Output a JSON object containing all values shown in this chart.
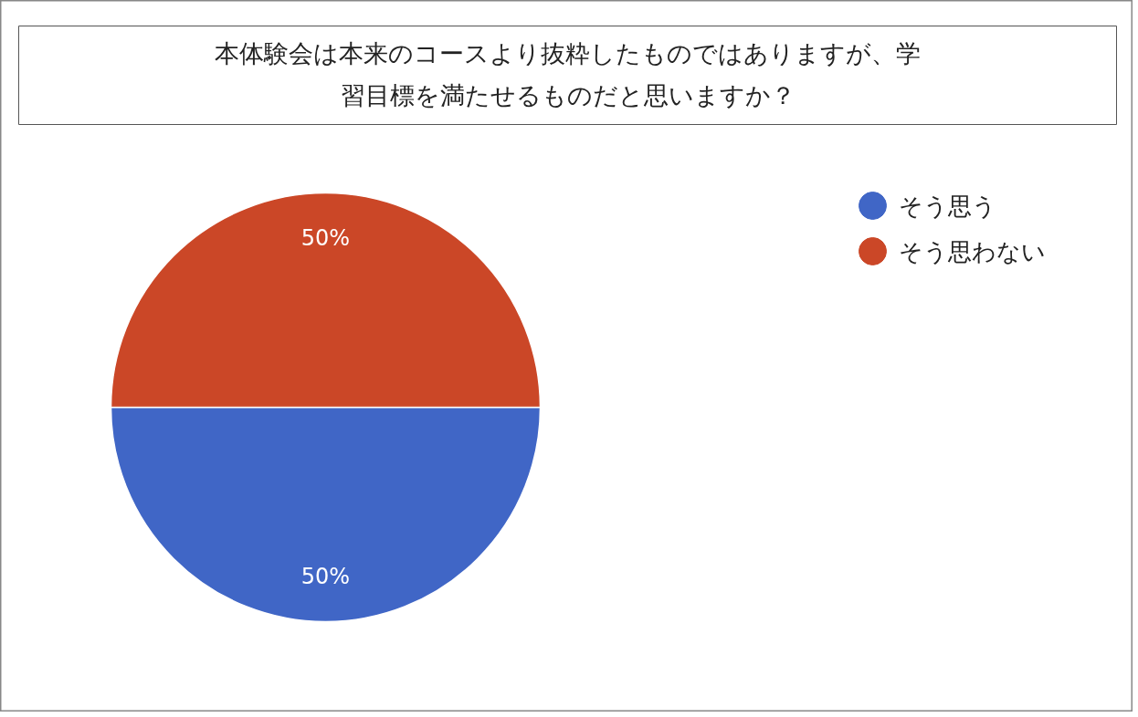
{
  "chart_data": {
    "type": "pie",
    "title": "本体験会は本来のコースより抜粋したものではありますが、学習目標を満たせるものだと思いますか？",
    "categories": [
      "そう思う",
      "そう思わない"
    ],
    "values": [
      50,
      50
    ],
    "colors": [
      "#4066c6",
      "#cb4727"
    ],
    "value_labels": [
      "50%",
      "50%"
    ],
    "legend": "top right"
  }
}
